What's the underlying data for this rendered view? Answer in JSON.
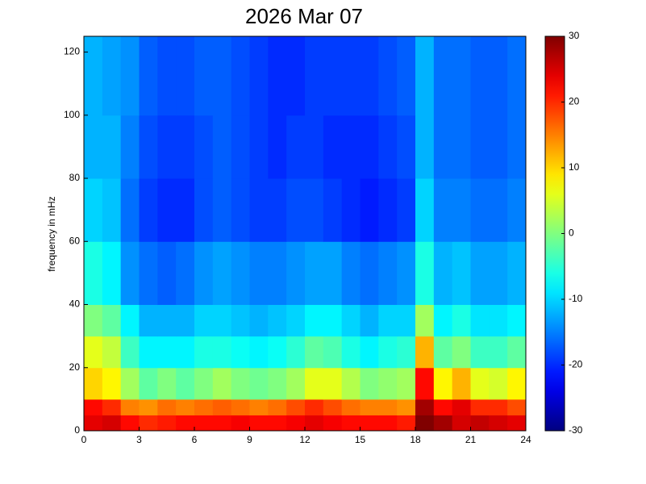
{
  "chart_data": {
    "type": "heatmap",
    "title": "2026 Mar 07",
    "ylabel": "frequency in mHz",
    "colormap": "jet",
    "x": [
      0,
      1,
      2,
      3,
      4,
      5,
      6,
      7,
      8,
      9,
      10,
      11,
      12,
      13,
      14,
      15,
      16,
      17,
      18,
      19,
      20,
      21,
      22,
      23,
      24
    ],
    "y": [
      0,
      5,
      10,
      20,
      30,
      40,
      60,
      80,
      100,
      125
    ],
    "values": [
      [
        24,
        25,
        22,
        20,
        21,
        22,
        22,
        22,
        23,
        22,
        22,
        23,
        24,
        23,
        22,
        22,
        22,
        21,
        30,
        28,
        25,
        26,
        25,
        24
      ],
      [
        22,
        20,
        15,
        14,
        16,
        15,
        16,
        17,
        16,
        15,
        16,
        18,
        20,
        18,
        16,
        15,
        15,
        14,
        28,
        22,
        24,
        20,
        20,
        18
      ],
      [
        10,
        8,
        2,
        -2,
        0,
        -2,
        0,
        2,
        0,
        -1,
        0,
        2,
        6,
        6,
        3,
        0,
        1,
        2,
        22,
        8,
        12,
        6,
        5,
        8
      ],
      [
        6,
        4,
        -4,
        -8,
        -8,
        -8,
        -6,
        -6,
        -7,
        -8,
        -7,
        -5,
        -2,
        -3,
        -6,
        -8,
        -6,
        -5,
        12,
        -2,
        0,
        -4,
        -4,
        -2
      ],
      [
        0,
        -2,
        -8,
        -12,
        -12,
        -12,
        -10,
        -10,
        -11,
        -12,
        -11,
        -10,
        -8,
        -8,
        -10,
        -12,
        -10,
        -10,
        2,
        -8,
        -6,
        -9,
        -9,
        -8
      ],
      [
        -6,
        -8,
        -14,
        -16,
        -17,
        -16,
        -14,
        -13,
        -14,
        -15,
        -15,
        -14,
        -13,
        -13,
        -15,
        -16,
        -15,
        -14,
        -6,
        -12,
        -11,
        -13,
        -13,
        -12
      ],
      [
        -10,
        -11,
        -16,
        -19,
        -20,
        -20,
        -18,
        -17,
        -18,
        -19,
        -19,
        -18,
        -18,
        -19,
        -20,
        -21,
        -20,
        -19,
        -10,
        -15,
        -15,
        -16,
        -16,
        -15
      ],
      [
        -12,
        -12,
        -15,
        -18,
        -19,
        -19,
        -18,
        -17,
        -18,
        -19,
        -20,
        -19,
        -19,
        -20,
        -20,
        -20,
        -19,
        -18,
        -12,
        -16,
        -16,
        -17,
        -17,
        -16
      ],
      [
        -12,
        -13,
        -14,
        -17,
        -18,
        -18,
        -17,
        -17,
        -18,
        -19,
        -20,
        -20,
        -19,
        -19,
        -19,
        -19,
        -18,
        -17,
        -12,
        -16,
        -16,
        -17,
        -17,
        -16
      ]
    ],
    "xlim": [
      0,
      24
    ],
    "xticks": [
      0,
      3,
      6,
      9,
      12,
      15,
      18,
      21,
      24
    ],
    "ylim": [
      0,
      125
    ],
    "yticks": [
      0,
      20,
      40,
      60,
      80,
      100,
      120
    ],
    "clim": [
      -30,
      30
    ],
    "cticks": [
      -30,
      -20,
      -10,
      0,
      10,
      20,
      30
    ]
  }
}
